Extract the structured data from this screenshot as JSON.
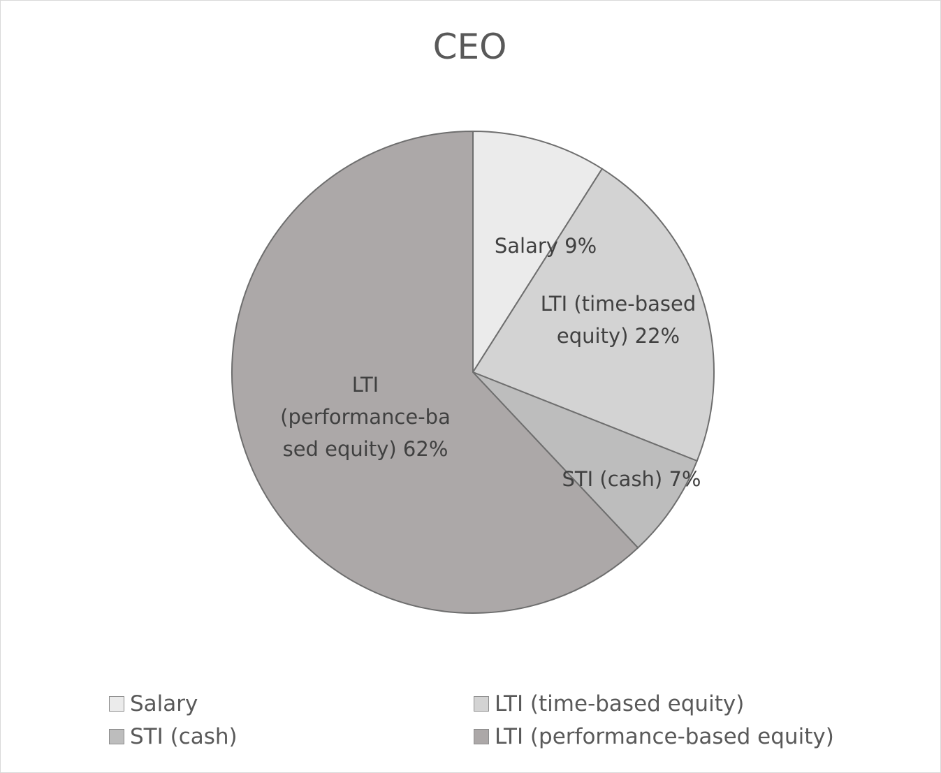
{
  "chart_data": {
    "type": "pie",
    "title": "CEO",
    "categories": [
      "Salary",
      "LTI (time-based equity)",
      "STI (cash)",
      "LTI (performance-based equity)"
    ],
    "values": [
      9,
      22,
      7,
      62
    ],
    "data_labels": [
      [
        "Salary 9%"
      ],
      [
        "LTI (time-based",
        "equity) 22%"
      ],
      [
        "STI (cash) 7%"
      ],
      [
        "LTI",
        "(performance-ba",
        "sed equity) 62%"
      ]
    ],
    "colors": [
      "#ebebeb",
      "#d3d3d3",
      "#bdbdbd",
      "#aca8a8"
    ],
    "legend": {
      "placement": "bottom",
      "items": [
        "Salary",
        "LTI (time-based equity)",
        "STI (cash)",
        "LTI (performance-based equity)"
      ]
    }
  }
}
